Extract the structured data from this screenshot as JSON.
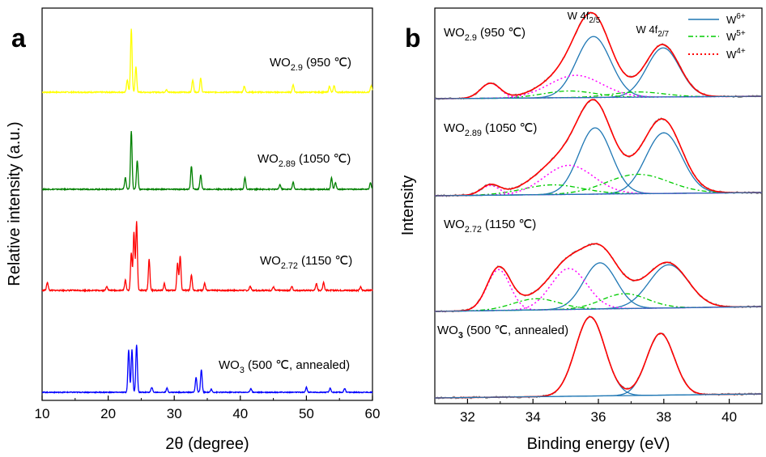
{
  "chart_data": [
    {
      "panel": "a",
      "type": "line",
      "xlabel": "2θ (degree)",
      "ylabel": "Relative intensity (a.u.)",
      "xlim": [
        10,
        60
      ],
      "x_ticks": [
        10,
        20,
        30,
        40,
        50,
        60
      ],
      "y_ticks_shown": false,
      "grid": false,
      "series": [
        {
          "label_formula": "WO",
          "label_sub": "2.9",
          "label_cond": " (950 ℃)",
          "color": "#ffff00",
          "peaks": [
            [
              22.9,
              0.2
            ],
            [
              23.5,
              1.0
            ],
            [
              24.2,
              0.4
            ],
            [
              28.8,
              0.04
            ],
            [
              32.8,
              0.2
            ],
            [
              34.0,
              0.22
            ],
            [
              40.6,
              0.1
            ],
            [
              48.0,
              0.12
            ],
            [
              53.5,
              0.1
            ],
            [
              54.2,
              0.1
            ],
            [
              59.8,
              0.1
            ]
          ]
        },
        {
          "label_formula": "WO",
          "label_sub": "2.89",
          "label_cond": " (1050 ℃)",
          "color": "#008000",
          "peaks": [
            [
              22.6,
              0.2
            ],
            [
              23.5,
              1.0
            ],
            [
              24.4,
              0.5
            ],
            [
              32.6,
              0.4
            ],
            [
              34.0,
              0.25
            ],
            [
              40.7,
              0.2
            ],
            [
              46.0,
              0.08
            ],
            [
              48.0,
              0.12
            ],
            [
              53.8,
              0.2
            ],
            [
              54.4,
              0.12
            ],
            [
              59.7,
              0.12
            ]
          ]
        },
        {
          "label_formula": "WO",
          "label_sub": "2.72",
          "label_cond": " (1150 ℃)",
          "color": "#ff0000",
          "peaks": [
            [
              10.8,
              0.12
            ],
            [
              19.8,
              0.06
            ],
            [
              22.6,
              0.15
            ],
            [
              23.5,
              0.55
            ],
            [
              23.9,
              0.85
            ],
            [
              24.3,
              1.0
            ],
            [
              26.2,
              0.45
            ],
            [
              28.5,
              0.1
            ],
            [
              30.5,
              0.4
            ],
            [
              30.9,
              0.5
            ],
            [
              32.6,
              0.22
            ],
            [
              34.6,
              0.1
            ],
            [
              41.5,
              0.06
            ],
            [
              45.0,
              0.05
            ],
            [
              47.8,
              0.06
            ],
            [
              51.5,
              0.1
            ],
            [
              52.6,
              0.12
            ],
            [
              58.2,
              0.05
            ]
          ]
        },
        {
          "label_formula": "WO",
          "label_sub": "3",
          "label_cond": " (500 ℃, annealed)",
          "color": "#0000ff",
          "peaks": [
            [
              23.1,
              0.85
            ],
            [
              23.6,
              0.85
            ],
            [
              24.3,
              0.95
            ],
            [
              26.6,
              0.1
            ],
            [
              28.9,
              0.08
            ],
            [
              33.3,
              0.3
            ],
            [
              34.1,
              0.45
            ],
            [
              35.6,
              0.06
            ],
            [
              41.6,
              0.08
            ],
            [
              50.0,
              0.1
            ],
            [
              53.6,
              0.08
            ],
            [
              55.8,
              0.08
            ]
          ]
        }
      ]
    },
    {
      "panel": "b",
      "type": "line",
      "xlabel": "Binding energy (eV)",
      "ylabel": "Intensity",
      "xlim": [
        31,
        41
      ],
      "x_ticks": [
        32,
        34,
        36,
        38,
        40
      ],
      "y_ticks_shown": false,
      "grid": false,
      "peak_labels": [
        {
          "text": "W 4f",
          "sub": "2/5",
          "x": 35.9
        },
        {
          "text": "W 4f",
          "sub": "2/7",
          "x": 38.0
        }
      ],
      "legend": {
        "position": "top-right",
        "entries": [
          {
            "base": "W",
            "sup": "6+",
            "color": "#1f77b4",
            "style": "solid"
          },
          {
            "base": "W",
            "sup": "5+",
            "color": "#00cc00",
            "style": "dash-dot"
          },
          {
            "base": "W",
            "sup": "4+",
            "color": "#ff0000",
            "style": "dotted"
          }
        ]
      },
      "envelope_color": "#ff0000",
      "component_colors": {
        "w6": "#1f77b4",
        "w5": "#00cc00",
        "w4": "#ff00ff"
      },
      "spectra": [
        {
          "label_formula": "WO",
          "label_sub": "2.9",
          "label_cond": " (950 ℃)",
          "w6": [
            [
              35.85,
              0.82,
              0.52
            ],
            [
              37.98,
              0.66,
              0.5
            ]
          ],
          "w5": [
            [
              35.1,
              0.09,
              0.8
            ],
            [
              37.2,
              0.07,
              0.8
            ]
          ],
          "w4": [
            [
              32.7,
              0.2,
              0.3
            ],
            [
              35.3,
              0.3,
              0.8
            ]
          ]
        },
        {
          "label_formula": "WO",
          "label_sub": "2.89",
          "label_cond": " (1050 ℃)",
          "w6": [
            [
              35.9,
              0.82,
              0.5
            ],
            [
              38.0,
              0.75,
              0.55
            ]
          ],
          "w5": [
            [
              34.6,
              0.12,
              0.9
            ],
            [
              37.2,
              0.24,
              0.95
            ]
          ],
          "w4": [
            [
              32.7,
              0.12,
              0.28
            ],
            [
              35.1,
              0.36,
              0.75
            ]
          ]
        },
        {
          "label_formula": "WO",
          "label_sub": "2.72",
          "label_cond": " (1150 ℃)",
          "w6": [
            [
              36.05,
              0.62,
              0.5
            ],
            [
              38.15,
              0.58,
              0.6
            ]
          ],
          "w5": [
            [
              34.1,
              0.15,
              0.7
            ],
            [
              36.8,
              0.2,
              0.7
            ]
          ],
          "w4": [
            [
              32.95,
              0.55,
              0.35
            ],
            [
              35.1,
              0.55,
              0.55
            ]
          ]
        },
        {
          "label_formula": "WO",
          "label_sub": "3",
          "label_cond": " (500 ℃, annealed)",
          "w6": [
            [
              35.75,
              1.0,
              0.45
            ],
            [
              37.9,
              0.78,
              0.42
            ]
          ],
          "w5": [],
          "w4": []
        }
      ]
    }
  ],
  "panel_letters": [
    "a",
    "b"
  ]
}
